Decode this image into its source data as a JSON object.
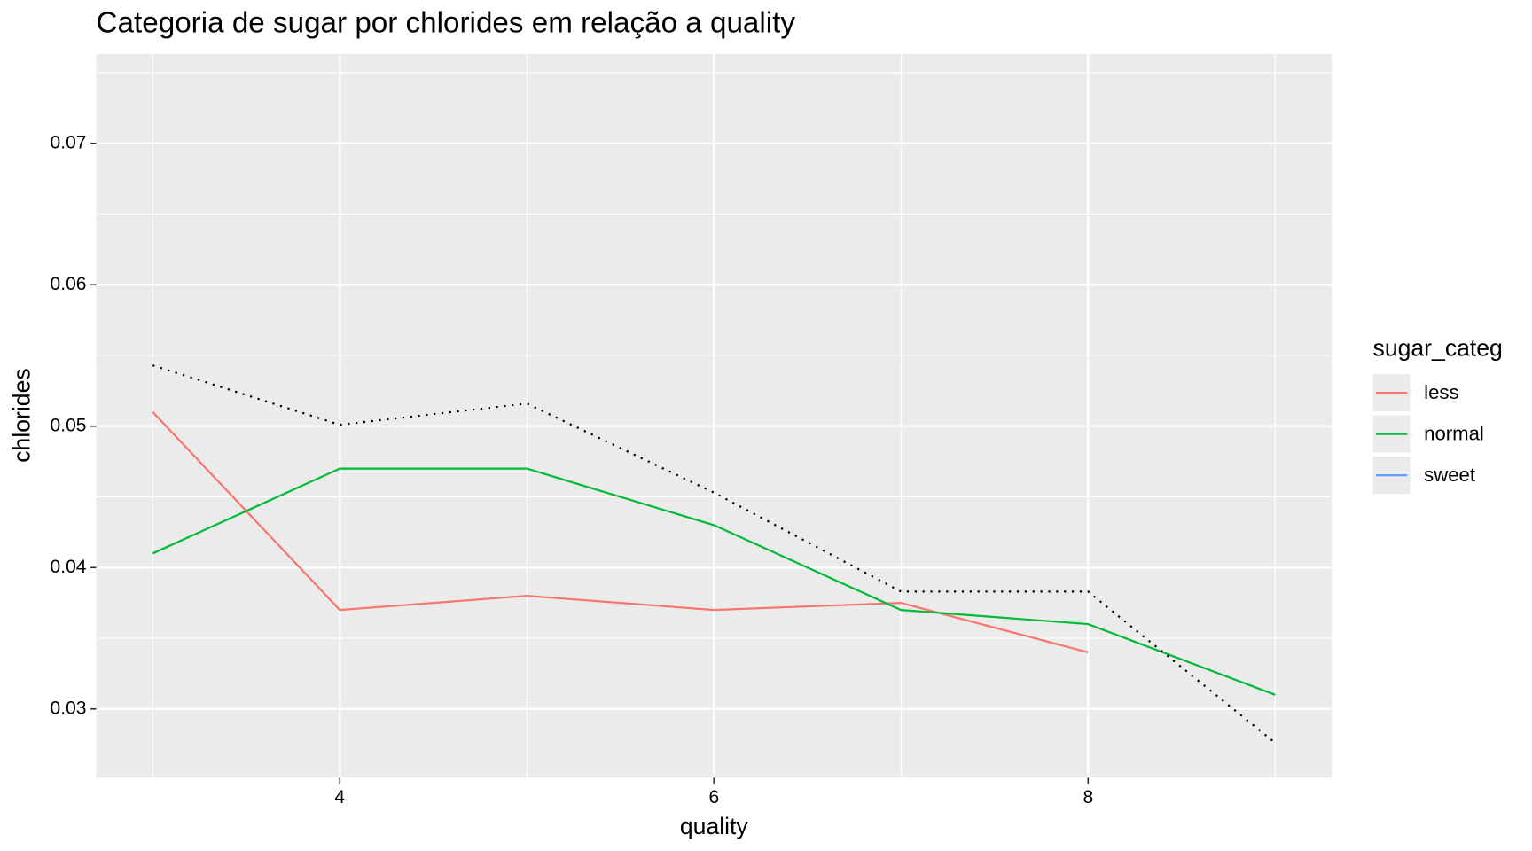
{
  "chart_data": {
    "type": "line",
    "title": "Categoria de sugar por chlorides em relação a quality",
    "x_label": "quality",
    "y_label": "chlorides",
    "x": [
      3,
      4,
      5,
      6,
      7,
      8,
      9
    ],
    "series": [
      {
        "name": "less",
        "color": "#f8766d",
        "values": [
          0.051,
          0.037,
          0.038,
          0.037,
          0.0375,
          0.034,
          null
        ]
      },
      {
        "name": "normal",
        "color": "#00ba38",
        "values": [
          0.041,
          0.047,
          0.047,
          0.043,
          0.037,
          0.036,
          0.031
        ]
      },
      {
        "name": "sweet",
        "color": "#619cff",
        "values": [
          null,
          null,
          null,
          null,
          null,
          null,
          null
        ]
      },
      {
        "color": "#000000",
        "linestyle": "dotted",
        "values": [
          0.0543,
          0.0501,
          0.0516,
          0.0453,
          0.0383,
          0.0383,
          0.0276
        ]
      }
    ],
    "legend_title": "sugar_categ",
    "legend": "right",
    "xlim": [
      2.698,
      9.302
    ],
    "ylim": [
      0.02514,
      0.07632
    ],
    "xticks": [
      4,
      6,
      8
    ],
    "yticks": [
      0.03,
      0.04,
      0.05,
      0.06,
      0.07
    ],
    "x_minor_grid": [
      3,
      5,
      7,
      9
    ],
    "y_minor_grid": [
      0.035,
      0.045,
      0.055,
      0.065,
      0.075
    ],
    "grid": true
  }
}
